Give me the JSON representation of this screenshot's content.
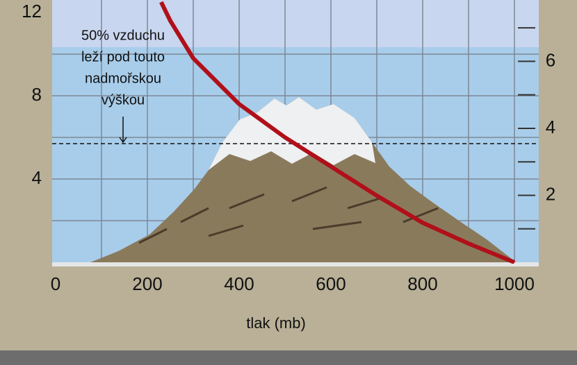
{
  "chart_data": {
    "type": "line",
    "x_label": "tlak (mb)",
    "annotation": [
      "50% vzduchu",
      "leží pod touto",
      "nadmořskou",
      "výškou"
    ],
    "reference_line": 5.7,
    "x": [
      1000,
      900,
      800,
      700,
      600,
      500,
      400,
      300,
      250,
      230
    ],
    "series": [
      {
        "color": "#b0101a",
        "values": [
          0,
          0.9,
          1.9,
          3.2,
          4.6,
          6.0,
          7.6,
          9.8,
          11.6,
          12.5
        ]
      }
    ],
    "xlim": [
      0,
      1050
    ],
    "xticks": [
      0,
      200,
      400,
      600,
      800,
      1000
    ],
    "ylim": [
      0,
      12.5
    ],
    "yticks": [
      4,
      8,
      12
    ],
    "y2lim": [
      0,
      7.77
    ],
    "y2ticks": [
      2,
      4,
      6
    ],
    "y2minorticks": [
      1,
      3,
      5,
      7
    ],
    "xgrid": [
      100,
      200,
      300,
      400,
      500,
      600,
      700,
      800,
      900,
      1000
    ],
    "ygrid": [
      2,
      4,
      6,
      8,
      10
    ],
    "grid": true
  }
}
